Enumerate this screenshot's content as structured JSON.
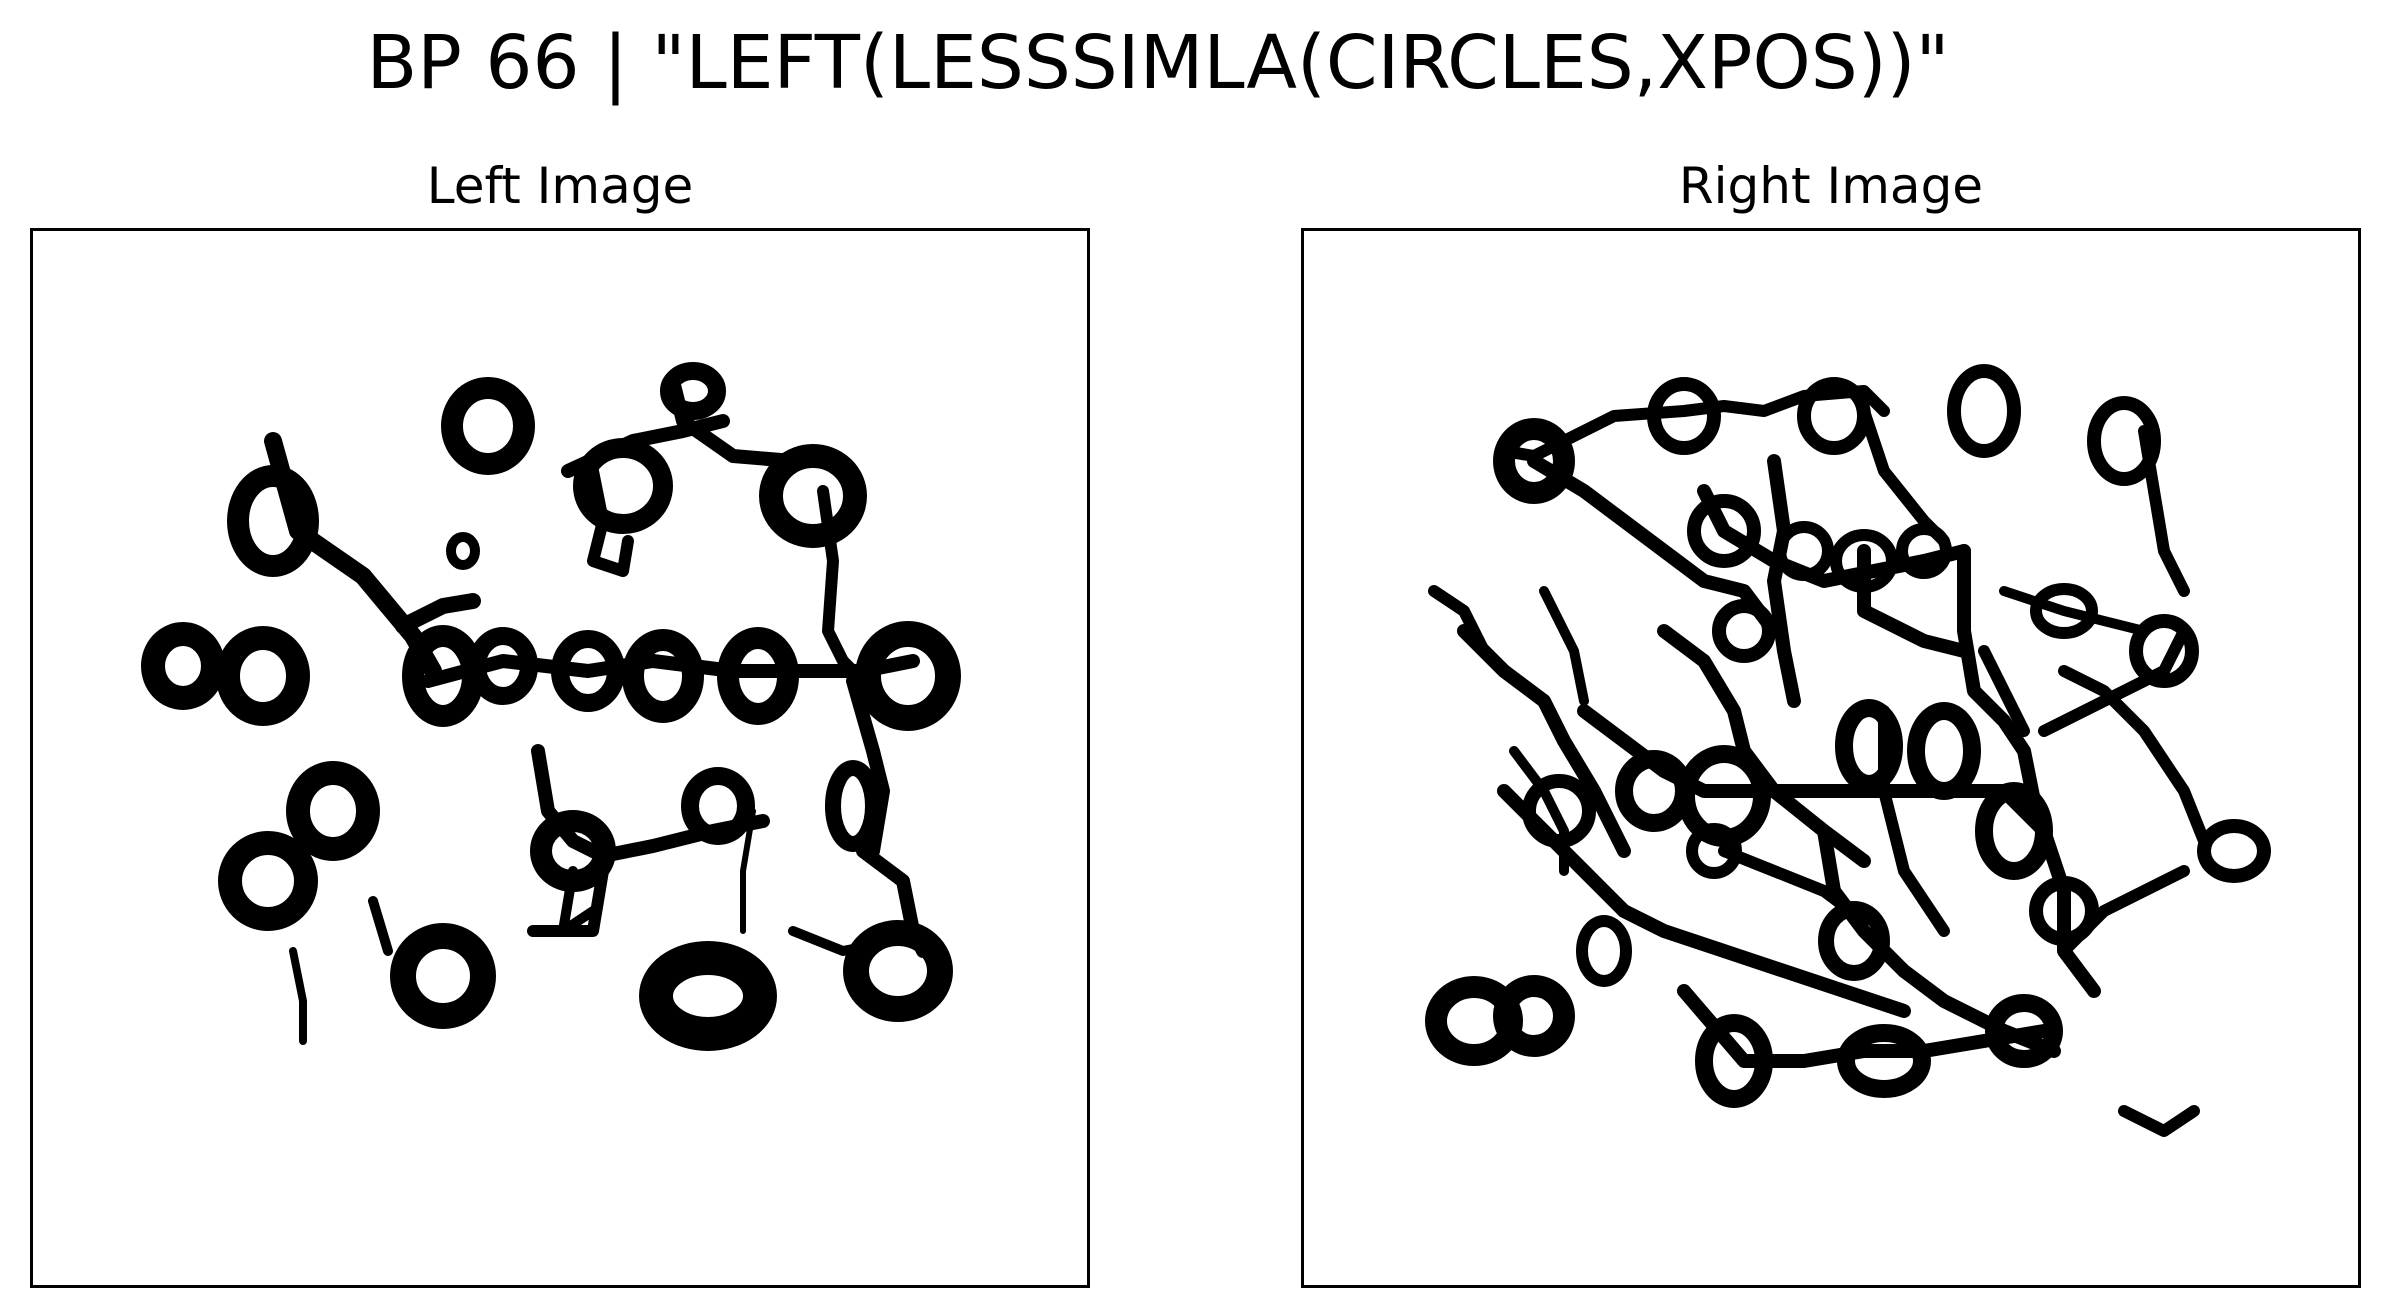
{
  "figure": {
    "title": "BP 66 | \"LEFT(LESSSIMLA(CIRCLES,XPOS))\""
  },
  "panels": [
    {
      "title": "Left Image",
      "description": "Black binary blobs: ring/loop shapes (circles) connected by thick strokes on white background"
    },
    {
      "title": "Right Image",
      "description": "Dense network of black rings/loops and polygonal cells on white background"
    }
  ],
  "colors": {
    "ink": "#000000",
    "background": "#ffffff"
  }
}
